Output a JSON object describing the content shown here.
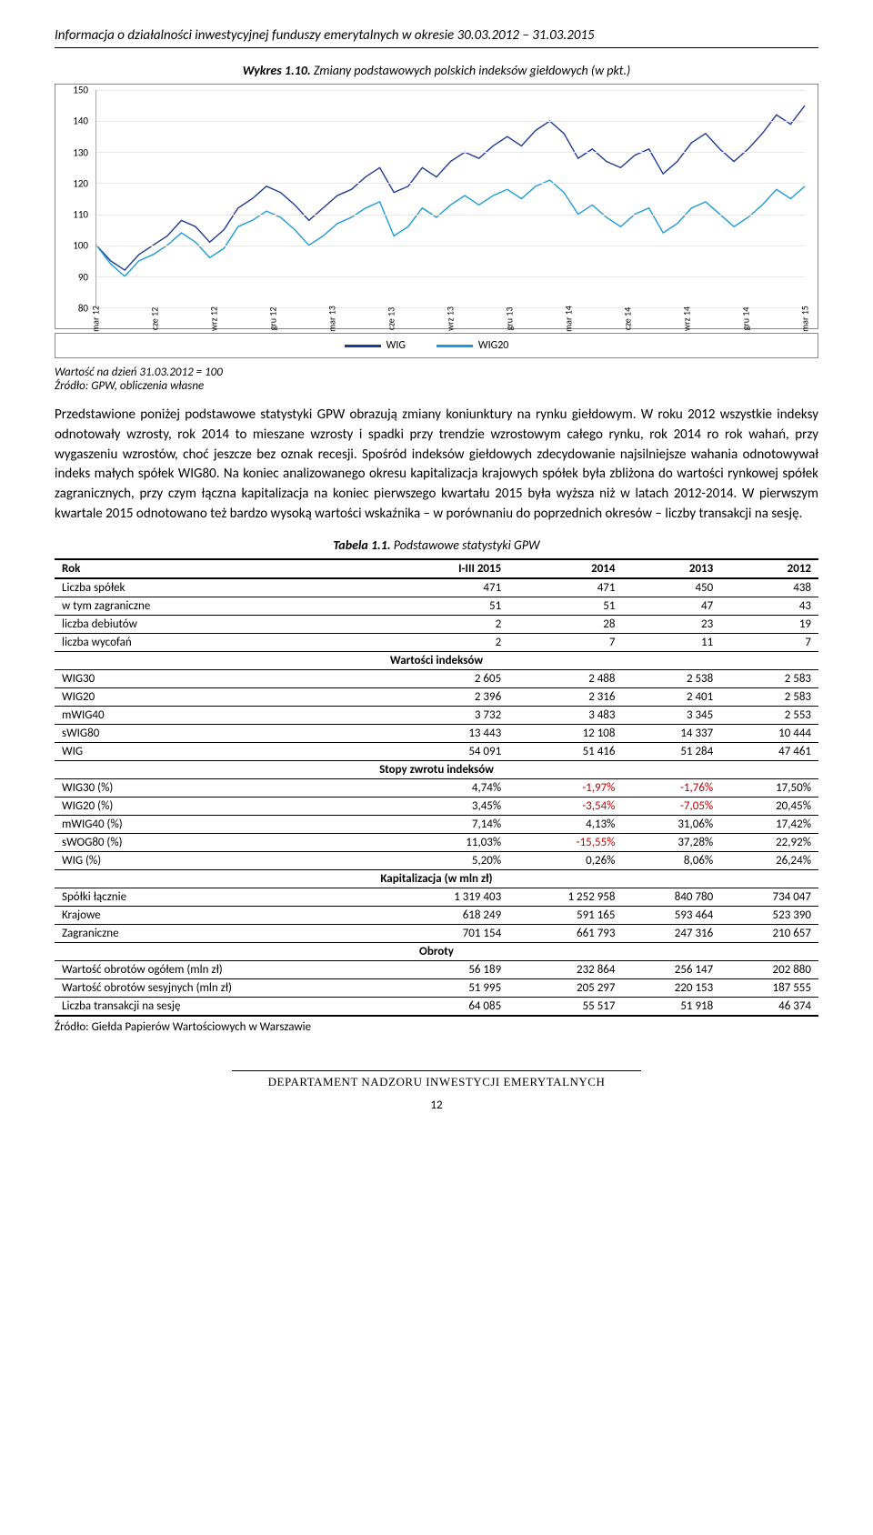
{
  "header": "Informacja o działalności inwestycyjnej funduszy emerytalnych w okresie 30.03.2012 – 31.03.2015",
  "chart": {
    "title_prefix": "Wykres 1.10.",
    "title_rest": "Zmiany podstawowych polskich indeksów giełdowych (w pkt.)",
    "type": "line",
    "ylim": [
      80,
      150
    ],
    "ytick_step": 10,
    "yticks": [
      80,
      90,
      100,
      110,
      120,
      130,
      140,
      150
    ],
    "xlabels": [
      "mar 12",
      "cze 12",
      "wrz 12",
      "gru 12",
      "mar 13",
      "cze 13",
      "wrz 13",
      "gru 13",
      "mar 14",
      "cze 14",
      "wrz 14",
      "gru 14",
      "mar 15"
    ],
    "series": [
      {
        "name": "WIG",
        "color": "#1f3a93",
        "width": 1.4,
        "data": [
          100,
          95,
          92,
          97,
          100,
          103,
          108,
          106,
          101,
          105,
          112,
          115,
          119,
          117,
          113,
          108,
          112,
          116,
          118,
          122,
          125,
          117,
          119,
          125,
          122,
          127,
          130,
          128,
          132,
          135,
          132,
          137,
          140,
          136,
          128,
          131,
          127,
          125,
          129,
          131,
          123,
          127,
          133,
          136,
          131,
          127,
          131,
          136,
          142,
          139,
          145
        ]
      },
      {
        "name": "WIG20",
        "color": "#1e9bd6",
        "width": 1.4,
        "data": [
          100,
          94,
          90,
          95,
          97,
          100,
          104,
          101,
          96,
          99,
          106,
          108,
          111,
          109,
          105,
          100,
          103,
          107,
          109,
          112,
          114,
          103,
          106,
          112,
          109,
          113,
          116,
          113,
          116,
          118,
          115,
          119,
          121,
          117,
          110,
          113,
          109,
          106,
          110,
          112,
          104,
          107,
          112,
          114,
          110,
          106,
          109,
          113,
          118,
          115,
          119
        ]
      }
    ],
    "grid_color": "#e8e8e8",
    "background_color": "#ffffff",
    "axis_font_size": 10
  },
  "legend": {
    "items": [
      "WIG",
      "WIG20"
    ]
  },
  "source_note_1": "Wartość na dzień 31.03.2012 = 100",
  "source_note_2": "Źródło: GPW, obliczenia własne",
  "body": "Przedstawione poniżej podstawowe statystyki GPW obrazują zmiany koniunktury na rynku giełdowym. W roku 2012 wszystkie indeksy odnotowały wzrosty, rok 2014 to mieszane wzrosty i spadki przy trendzie wzrostowym całego rynku, rok 2014 ro rok wahań, przy wygaszeniu wzrostów, choć jeszcze bez oznak recesji. Spośród indeksów giełdowych zdecydowanie najsilniejsze wahania odnotowywał indeks małych spółek WIG80. Na koniec analizowanego okresu kapitalizacja krajowych spółek była zbliżona do wartości rynkowej spółek zagranicznych, przy czym łączna kapitalizacja na koniec pierwszego kwartału 2015 była wyższa niż w latach 2012-2014. W pierwszym kwartale 2015 odnotowano też bardzo wysoką wartości wskaźnika – w porównaniu do poprzednich okresów – liczby transakcji na sesję.",
  "table": {
    "title_prefix": "Tabela 1.1.",
    "title_rest": "Podstawowe statystyki GPW",
    "columns": [
      "Rok",
      "I-III 2015",
      "2014",
      "2013",
      "2012"
    ],
    "col_align": [
      "left",
      "right",
      "right",
      "right",
      "right"
    ],
    "rows": [
      {
        "label": "Liczba spółek",
        "v": [
          "471",
          "471",
          "450",
          "438"
        ]
      },
      {
        "label": "w tym zagraniczne",
        "v": [
          "51",
          "51",
          "47",
          "43"
        ]
      },
      {
        "label": "liczba debiutów",
        "v": [
          "2",
          "28",
          "23",
          "19"
        ]
      },
      {
        "label": "liczba wycofań",
        "v": [
          "2",
          "7",
          "11",
          "7"
        ]
      }
    ],
    "section_indices": {
      "label": "Wartości indeksów"
    },
    "rows_indices": [
      {
        "label": "WIG30",
        "v": [
          "2 605",
          "2 488",
          "2 538",
          "2 583"
        ]
      },
      {
        "label": "WIG20",
        "v": [
          "2 396",
          "2 316",
          "2 401",
          "2 583"
        ]
      },
      {
        "label": "mWIG40",
        "v": [
          "3 732",
          "3 483",
          "3 345",
          "2 553"
        ]
      },
      {
        "label": "sWIG80",
        "v": [
          "13 443",
          "12 108",
          "14 337",
          "10 444"
        ]
      },
      {
        "label": "WIG",
        "v": [
          "54 091",
          "51 416",
          "51 284",
          "47 461"
        ]
      }
    ],
    "section_returns": {
      "label": "Stopy zwrotu indeksów"
    },
    "rows_returns": [
      {
        "label": "WIG30 (%)",
        "v": [
          "4,74%",
          "-1,97%",
          "-1,76%",
          "17,50%"
        ],
        "neg": [
          false,
          true,
          true,
          false
        ]
      },
      {
        "label": "WIG20 (%)",
        "v": [
          "3,45%",
          "-3,54%",
          "-7,05%",
          "20,45%"
        ],
        "neg": [
          false,
          true,
          true,
          false
        ]
      },
      {
        "label": "mWIG40 (%)",
        "v": [
          "7,14%",
          "4,13%",
          "31,06%",
          "17,42%"
        ],
        "neg": [
          false,
          false,
          false,
          false
        ]
      },
      {
        "label": "sWOG80 (%)",
        "v": [
          "11,03%",
          "-15,55%",
          "37,28%",
          "22,92%"
        ],
        "neg": [
          false,
          true,
          false,
          false
        ]
      },
      {
        "label": "WIG (%)",
        "v": [
          "5,20%",
          "0,26%",
          "8,06%",
          "26,24%"
        ],
        "neg": [
          false,
          false,
          false,
          false
        ]
      }
    ],
    "section_cap": {
      "label": "Kapitalizacja (w mln zł)"
    },
    "rows_cap": [
      {
        "label": "Spółki łącznie",
        "v": [
          "1 319 403",
          "1 252 958",
          "840 780",
          "734 047"
        ]
      },
      {
        "label": "Krajowe",
        "v": [
          "618 249",
          "591 165",
          "593 464",
          "523 390"
        ]
      },
      {
        "label": "Zagraniczne",
        "v": [
          "701 154",
          "661 793",
          "247 316",
          "210 657"
        ]
      }
    ],
    "section_turn": {
      "label": "Obroty"
    },
    "rows_turn": [
      {
        "label": "Wartość obrotów ogółem (mln zł)",
        "v": [
          "56 189",
          "232 864",
          "256 147",
          "202 880"
        ]
      },
      {
        "label": "Wartość obrotów sesyjnych (mln zł)",
        "v": [
          "51 995",
          "205 297",
          "220 153",
          "187 555"
        ]
      },
      {
        "label": "Liczba transakcji na sesję",
        "v": [
          "64 085",
          "55 517",
          "51 918",
          "46 374"
        ]
      }
    ],
    "source": "Źródło: Giełda Papierów Wartościowych w Warszawie"
  },
  "footer": "DEPARTAMENT NADZORU INWESTYCJI EMERYTALNYCH",
  "page_number": "12"
}
